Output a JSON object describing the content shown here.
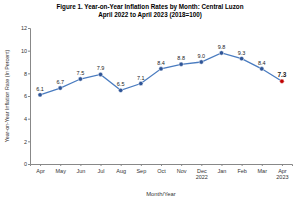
{
  "chart_data": {
    "type": "line",
    "title": "Figure 1. Year-on-Year Inflation Rates by Month: Central Luzon",
    "subtitle": "April 2022 to April 2023 (2018=100)",
    "x_label": "Month/Year",
    "y_label": "Year-on-Year Inflation Rate (In Percent)",
    "categories": [
      "Apr",
      "May",
      "Jun",
      "Jul",
      "Aug",
      "Sep",
      "Oct",
      "Nov",
      "Dec 2022",
      "Jan",
      "Feb",
      "Mar",
      "Apr 2023"
    ],
    "values": [
      6.1,
      6.7,
      7.5,
      7.9,
      6.5,
      7.1,
      8.4,
      8.8,
      9.0,
      9.8,
      9.3,
      8.4,
      7.3
    ],
    "value_labels": [
      "6.1",
      "6.7",
      "7.5",
      "7.9",
      "6.5",
      "7.1",
      "8.4",
      "8.8",
      "9.0",
      "9.8",
      "9.3",
      "8.4",
      "7.3"
    ],
    "color": "#4a7cc0",
    "colors": [
      "#2f5597",
      "#2f5597",
      "#2f5597",
      "#2f5597",
      "#2f5597",
      "#2f5597",
      "#2f5597",
      "#2f5597",
      "#2f5597",
      "#2f5597",
      "#2f5597",
      "#2f5597",
      "#c00000"
    ],
    "marker": "circle",
    "data_labels": true,
    "grid": false,
    "ylim": [
      0,
      12
    ],
    "yticks": [
      0,
      2,
      4,
      6,
      8,
      10,
      12
    ]
  }
}
